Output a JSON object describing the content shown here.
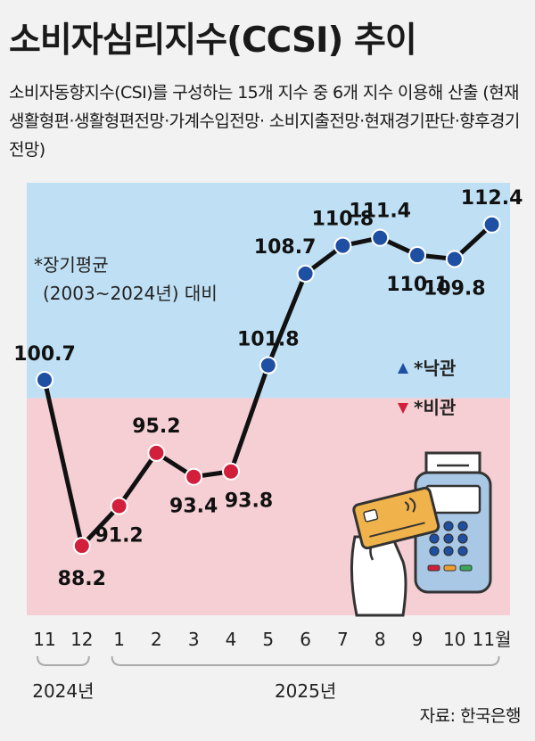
{
  "title": "소비자심리지수(CCSI) 추이",
  "subtitle": "소비자동향지수(CSI)를 구성하는 15개 지수 중 6개 지수 이용해 산출 (현재생활형편·생활형편전망·가계수입전망· 소비지출전망·현재경기판단·향후경기전망)",
  "note_line1": "*장기평균",
  "note_line2": "(2003~2024년) 대비",
  "source": "자료: 한국은행",
  "colors": {
    "optimism_bg": "#bfe0f4",
    "pessimism_bg": "#f5cfd3",
    "optimism_marker": "#1e4fa3",
    "pessimism_marker": "#d21f3c",
    "line": "#111111"
  },
  "chart_data": {
    "type": "line",
    "baseline": 100,
    "x": [
      "11",
      "12",
      "1",
      "2",
      "3",
      "4",
      "5",
      "6",
      "7",
      "8",
      "9",
      "10",
      "11월"
    ],
    "values": [
      100.7,
      88.2,
      91.2,
      95.2,
      93.4,
      93.8,
      101.8,
      108.7,
      110.8,
      111.4,
      110.1,
      109.8,
      112.4
    ],
    "labels": [
      "100.7",
      "88.2",
      "91.2",
      "95.2",
      "93.4",
      "93.8",
      "101.8",
      "108.7",
      "110.8",
      "111.4",
      "110.1",
      "109.8",
      "112.4"
    ],
    "year_groups": [
      {
        "label": "2024년",
        "from": 0,
        "to": 1
      },
      {
        "label": "2025년",
        "from": 2,
        "to": 12
      }
    ],
    "legend": [
      {
        "symbol": "▲",
        "label": "*낙관",
        "marker": "up"
      },
      {
        "symbol": "▼",
        "label": "*비관",
        "marker": "down"
      }
    ]
  }
}
